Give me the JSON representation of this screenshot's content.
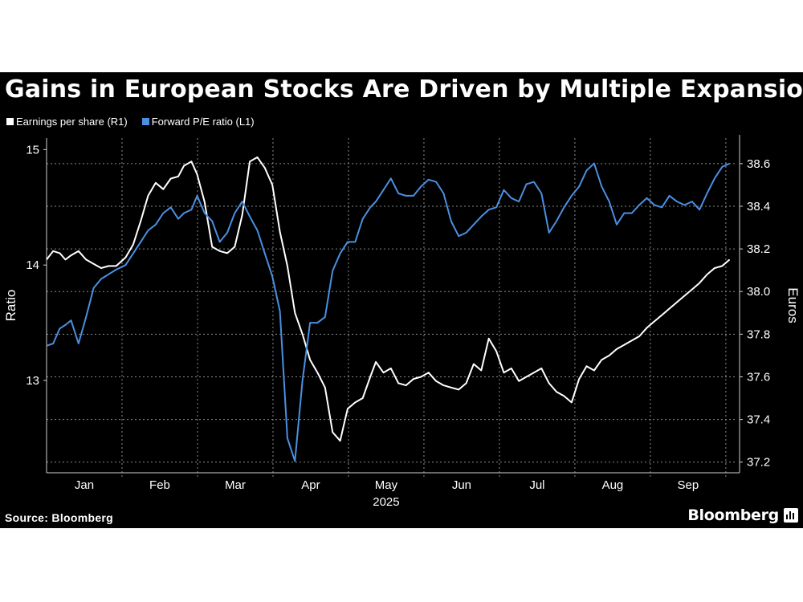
{
  "chart_data": {
    "type": "line",
    "title": "Gains in European Stocks Are Driven by Multiple Expansion",
    "source": "Source: Bloomberg",
    "brand": "Bloomberg",
    "year_label": "2025",
    "x_months": [
      "Jan",
      "Feb",
      "Mar",
      "Apr",
      "May",
      "Jun",
      "Jul",
      "Aug",
      "Sep"
    ],
    "x_range_weeks": [
      0,
      36.7
    ],
    "left_axis": {
      "label": "Ratio",
      "ticks": [
        13,
        14,
        15
      ],
      "range": [
        12.2,
        15.1
      ]
    },
    "right_axis": {
      "label": "Euros",
      "ticks": [
        37.2,
        37.4,
        37.6,
        37.8,
        38.0,
        38.2,
        38.4,
        38.6
      ],
      "range": [
        37.15,
        38.72
      ]
    },
    "grid": true,
    "legend_position": "top-left",
    "series": [
      {
        "name": "Earnings per share (R1)",
        "axis": "right",
        "color": "#ffffff",
        "x": [
          0,
          0.35,
          0.7,
          1.0,
          1.3,
          1.7,
          2.1,
          2.5,
          2.9,
          3.3,
          3.7,
          4.2,
          4.6,
          5.0,
          5.4,
          5.8,
          6.2,
          6.6,
          7.0,
          7.3,
          7.7,
          8.0,
          8.4,
          8.8,
          9.2,
          9.6,
          10.0,
          10.4,
          10.8,
          11.2,
          11.6,
          12.0,
          12.4,
          12.8,
          13.2,
          13.6,
          14.0,
          14.4,
          14.8,
          15.2,
          15.6,
          16.0,
          16.4,
          16.8,
          17.2,
          17.5,
          17.9,
          18.3,
          18.7,
          19.1,
          19.5,
          19.9,
          20.3,
          20.7,
          21.1,
          21.5,
          21.9,
          22.3,
          22.7,
          23.1,
          23.5,
          23.9,
          24.3,
          24.7,
          25.1,
          25.5,
          25.9,
          26.3,
          26.7,
          27.1,
          27.5,
          27.9,
          28.3,
          28.7,
          29.1,
          29.5,
          29.9,
          30.3,
          30.7,
          31.1,
          31.5,
          31.9,
          32.3,
          32.7,
          33.1,
          33.5,
          33.9,
          34.3,
          34.7,
          35.1,
          35.5,
          35.9,
          36.3
        ],
        "values": [
          38.15,
          38.19,
          38.18,
          38.15,
          38.17,
          38.19,
          38.15,
          38.13,
          38.11,
          38.12,
          38.12,
          38.16,
          38.22,
          38.33,
          38.45,
          38.51,
          38.48,
          38.53,
          38.54,
          38.59,
          38.61,
          38.55,
          38.42,
          38.21,
          38.19,
          38.18,
          38.21,
          38.36,
          38.61,
          38.63,
          38.58,
          38.5,
          38.28,
          38.12,
          37.9,
          37.8,
          37.68,
          37.62,
          37.55,
          37.34,
          37.3,
          37.45,
          37.48,
          37.5,
          37.6,
          37.67,
          37.62,
          37.64,
          37.57,
          37.56,
          37.59,
          37.6,
          37.62,
          37.58,
          37.56,
          37.55,
          37.54,
          37.57,
          37.66,
          37.63,
          37.78,
          37.72,
          37.62,
          37.64,
          37.58,
          37.6,
          37.62,
          37.64,
          37.57,
          37.53,
          37.51,
          37.48,
          37.59,
          37.65,
          37.63,
          37.68,
          37.7,
          37.73,
          37.75,
          37.77,
          37.79,
          37.83,
          37.86,
          37.89,
          37.92,
          37.95,
          37.98,
          38.01,
          38.04,
          38.08,
          38.11,
          38.12,
          38.15
        ]
      },
      {
        "name": "Forward P/E ratio (L1)",
        "axis": "left",
        "color": "#4a90e2",
        "x": [
          0,
          0.35,
          0.7,
          1.0,
          1.3,
          1.7,
          2.1,
          2.5,
          2.9,
          3.3,
          3.7,
          4.2,
          4.6,
          5.0,
          5.4,
          5.8,
          6.2,
          6.6,
          7.0,
          7.3,
          7.7,
          8.0,
          8.4,
          8.8,
          9.2,
          9.6,
          10.0,
          10.4,
          10.8,
          11.2,
          11.6,
          12.0,
          12.4,
          12.8,
          13.2,
          13.6,
          14.0,
          14.4,
          14.8,
          15.2,
          15.6,
          16.0,
          16.4,
          16.8,
          17.2,
          17.5,
          17.9,
          18.3,
          18.7,
          19.1,
          19.5,
          19.9,
          20.3,
          20.7,
          21.1,
          21.5,
          21.9,
          22.3,
          22.7,
          23.1,
          23.5,
          23.9,
          24.3,
          24.7,
          25.1,
          25.5,
          25.9,
          26.3,
          26.7,
          27.1,
          27.5,
          27.9,
          28.3,
          28.7,
          29.1,
          29.5,
          29.9,
          30.3,
          30.7,
          31.1,
          31.5,
          31.9,
          32.3,
          32.7,
          33.1,
          33.5,
          33.9,
          34.3,
          34.7,
          35.1,
          35.5,
          35.9,
          36.3
        ],
        "values": [
          13.3,
          13.32,
          13.45,
          13.48,
          13.52,
          13.32,
          13.55,
          13.8,
          13.88,
          13.92,
          13.96,
          14.0,
          14.1,
          14.2,
          14.3,
          14.35,
          14.45,
          14.5,
          14.4,
          14.45,
          14.48,
          14.6,
          14.45,
          14.38,
          14.2,
          14.28,
          14.45,
          14.55,
          14.42,
          14.3,
          14.1,
          13.9,
          13.6,
          12.5,
          12.3,
          13.0,
          13.5,
          13.5,
          13.55,
          13.95,
          14.1,
          14.2,
          14.2,
          14.4,
          14.5,
          14.55,
          14.65,
          14.75,
          14.62,
          14.6,
          14.6,
          14.68,
          14.74,
          14.72,
          14.62,
          14.38,
          14.25,
          14.28,
          14.35,
          14.42,
          14.48,
          14.5,
          14.65,
          14.58,
          14.55,
          14.7,
          14.72,
          14.62,
          14.28,
          14.38,
          14.5,
          14.6,
          14.68,
          14.82,
          14.88,
          14.68,
          14.55,
          14.35,
          14.45,
          14.45,
          14.52,
          14.58,
          14.52,
          14.5,
          14.6,
          14.55,
          14.52,
          14.55,
          14.48,
          14.62,
          14.75,
          14.85,
          14.88
        ]
      }
    ]
  }
}
